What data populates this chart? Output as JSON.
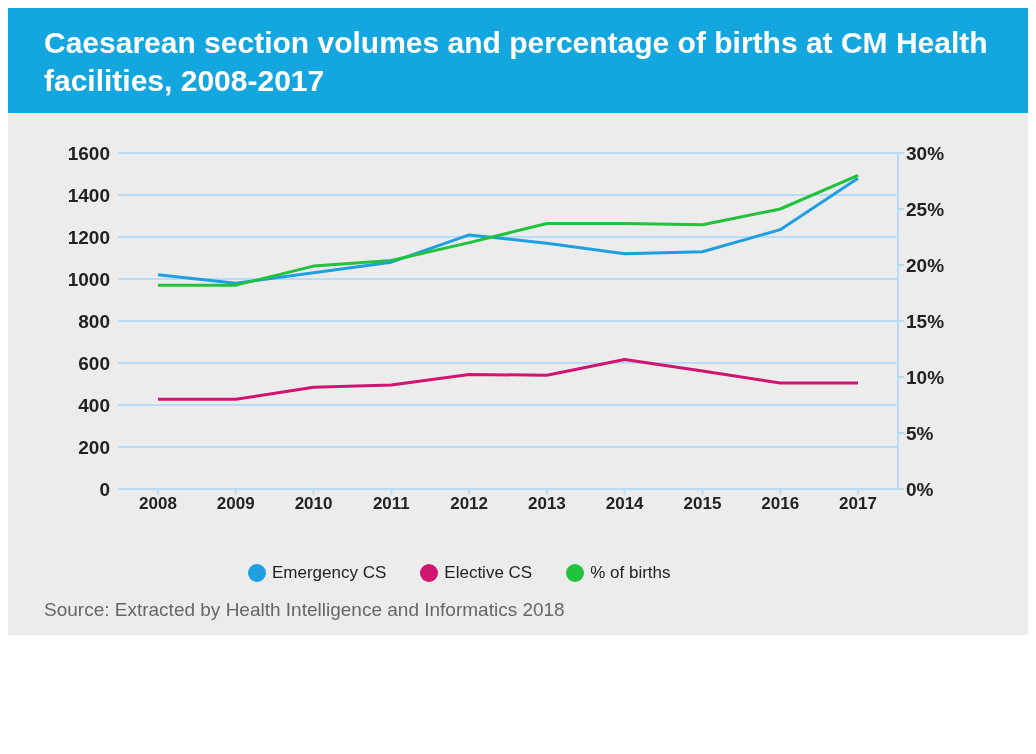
{
  "chart_data": {
    "type": "line",
    "title": "Caesarean section volumes and percentage of births at CM Health facilities, 2008-2017",
    "categories": [
      "2008",
      "2009",
      "2010",
      "2011",
      "2012",
      "2013",
      "2014",
      "2015",
      "2016",
      "2017"
    ],
    "series": [
      {
        "name": "Emergency CS",
        "color": "#1e9fe0",
        "values": [
          1020,
          980,
          1030,
          1080,
          1210,
          1170,
          1120,
          1130,
          1235,
          1480
        ]
      },
      {
        "name": "Elective CS",
        "color": "#d0146f",
        "values": [
          427,
          427,
          485,
          495,
          545,
          542,
          617,
          562,
          505,
          505
        ]
      },
      {
        "name": "% of births",
        "color": "#21c23c",
        "axis": "y2",
        "values": [
          18.2,
          18.2,
          19.9,
          20.4,
          22.0,
          23.7,
          23.7,
          23.6,
          25.0,
          28.0
        ]
      }
    ],
    "ylim": [
      0,
      1600
    ],
    "yticks": [
      0,
      200,
      400,
      600,
      800,
      1000,
      1200,
      1400,
      1600
    ],
    "y2lim": [
      0,
      30
    ],
    "y2ticks": [
      {
        "value": 0,
        "label": "0%"
      },
      {
        "value": 5,
        "label": "5%"
      },
      {
        "value": 10,
        "label": "10%"
      },
      {
        "value": 15,
        "label": "15%"
      },
      {
        "value": 20,
        "label": "20%"
      },
      {
        "value": 25,
        "label": "25%"
      },
      {
        "value": 30,
        "label": "30%"
      }
    ],
    "grid": "y",
    "legend": "bottom left",
    "marker": "none",
    "line_style": "solid",
    "annotations": [
      "Source: Extracted by Health Intelligence and Informatics 2018"
    ]
  }
}
